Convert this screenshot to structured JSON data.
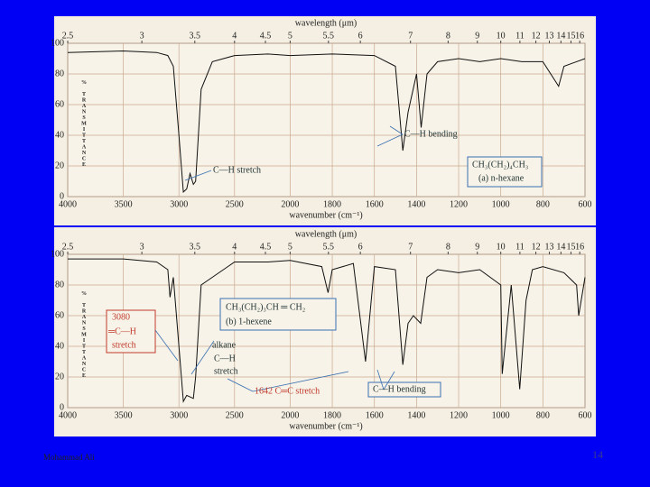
{
  "chart_data": [
    {
      "type": "line",
      "xlabel": "wavenumber (cm⁻¹)",
      "x2label": "wavelength (μm)",
      "ylabel": "% TRANSMITTANCE",
      "x": [
        4000,
        3500,
        3200,
        3100,
        3050,
        3000,
        2960,
        2930,
        2900,
        2870,
        2850,
        2800,
        2700,
        2500,
        2200,
        2000,
        1800,
        1600,
        1500,
        1465,
        1440,
        1400,
        1378,
        1350,
        1300,
        1200,
        1100,
        1000,
        900,
        800,
        725,
        700,
        600
      ],
      "values": [
        94,
        95,
        94,
        92,
        85,
        40,
        3,
        5,
        15,
        8,
        10,
        70,
        88,
        92,
        93,
        92,
        93,
        92,
        85,
        30,
        55,
        80,
        45,
        80,
        88,
        90,
        88,
        90,
        88,
        88,
        72,
        85,
        90
      ],
      "color": "#111111",
      "xlim": [
        4000,
        600
      ],
      "ylim": [
        0,
        100
      ],
      "xscale_break": 2000,
      "xticks": [
        4000,
        3500,
        3000,
        2500,
        2000,
        1800,
        1600,
        1400,
        1200,
        1000,
        800,
        600
      ],
      "x2ticks": [
        2.5,
        3,
        3.5,
        4,
        4.5,
        5,
        5.5,
        6,
        7,
        8,
        9,
        10,
        11,
        12,
        13,
        14,
        15,
        16
      ],
      "yticks": [
        0,
        20,
        40,
        60,
        80,
        100
      ],
      "grid": true,
      "annotations": [
        "C—H stretch",
        "C—H bending",
        "CH₃(CH₂)₄CH₃",
        "(a) n-hexane"
      ]
    },
    {
      "type": "line",
      "xlabel": "wavenumber (cm⁻¹)",
      "x2label": "wavelength (μm)",
      "ylabel": "% TRANSMITTANCE",
      "x": [
        4000,
        3500,
        3200,
        3100,
        3080,
        3050,
        3000,
        2960,
        2930,
        2870,
        2850,
        2800,
        2500,
        2200,
        2000,
        1850,
        1820,
        1800,
        1700,
        1642,
        1600,
        1500,
        1465,
        1440,
        1415,
        1380,
        1350,
        1300,
        1200,
        1100,
        1000,
        993,
        950,
        910,
        880,
        850,
        800,
        700,
        640,
        630,
        600
      ],
      "values": [
        97,
        97,
        95,
        90,
        72,
        85,
        40,
        4,
        8,
        6,
        20,
        80,
        95,
        95,
        96,
        92,
        75,
        90,
        94,
        30,
        92,
        90,
        28,
        55,
        60,
        55,
        85,
        90,
        88,
        90,
        80,
        22,
        80,
        12,
        70,
        90,
        92,
        88,
        80,
        60,
        85
      ],
      "color": "#111111",
      "xlim": [
        4000,
        600
      ],
      "ylim": [
        0,
        100
      ],
      "xscale_break": 2000,
      "xticks": [
        4000,
        3500,
        3000,
        2500,
        2000,
        1800,
        1600,
        1400,
        1200,
        1000,
        800,
        600
      ],
      "x2ticks": [
        2.5,
        3,
        3.5,
        4,
        4.5,
        5,
        5.5,
        6,
        7,
        8,
        9,
        10,
        11,
        12,
        13,
        14,
        15,
        16
      ],
      "yticks": [
        0,
        20,
        40,
        60,
        80,
        100
      ],
      "grid": true,
      "annotations": [
        "CH₃(CH₂)₃CH ═ CH₂",
        "(b) 1-hexene",
        "3080",
        "═C—H",
        "stretch",
        "alkane",
        "C—H",
        "stretch",
        "1642 C═C stretch",
        "C—H bending"
      ]
    }
  ],
  "footer": {
    "author": "Mohammad Ali",
    "page": "14"
  }
}
